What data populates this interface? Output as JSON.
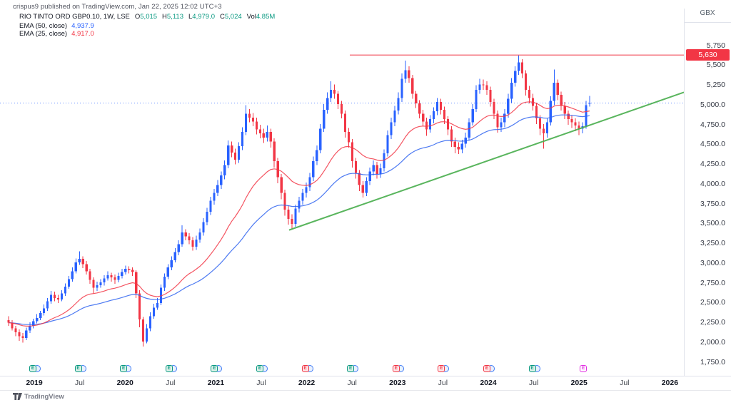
{
  "header": {
    "published_line": "crispus9 published on TradingView.com, Jan 22, 2025 12:02 UTC+3",
    "symbol": "RIO TINTO ORD GBP0.10, 1W, LSE",
    "ohlc": [
      {
        "label": "O",
        "value": "5,015"
      },
      {
        "label": "H",
        "value": "5,113"
      },
      {
        "label": "L",
        "value": "4,979.0"
      },
      {
        "label": "C",
        "value": "5,024"
      },
      {
        "label": "Vol",
        "value": "4.85M"
      }
    ],
    "value_color": "#089981",
    "indicators": [
      {
        "label": "EMA (50, close)",
        "value": "4,937.9",
        "color": "#2962ff"
      },
      {
        "label": "EMA (25, close)",
        "value": "4,917.0",
        "color": "#f23645"
      }
    ]
  },
  "price_axis": {
    "unit": "GBX",
    "labels": [
      {
        "text": "5,750",
        "value": 5750
      },
      {
        "text": "5,500",
        "value": 5500
      },
      {
        "text": "5,250",
        "value": 5250
      },
      {
        "text": "5,000.0",
        "value": 5000
      },
      {
        "text": "4,750.0",
        "value": 4750
      },
      {
        "text": "4,500.0",
        "value": 4500
      },
      {
        "text": "4,250.0",
        "value": 4250
      },
      {
        "text": "4,000.0",
        "value": 4000
      },
      {
        "text": "3,750.0",
        "value": 3750
      },
      {
        "text": "3,500.0",
        "value": 3500
      },
      {
        "text": "3,250.0",
        "value": 3250
      },
      {
        "text": "3,000.0",
        "value": 3000
      },
      {
        "text": "2,750.0",
        "value": 2750
      },
      {
        "text": "2,500.0",
        "value": 2500
      },
      {
        "text": "2,250.0",
        "value": 2250
      },
      {
        "text": "2,000.0",
        "value": 2000
      },
      {
        "text": "1,750.0",
        "value": 1750
      }
    ],
    "badge": {
      "text": "5,630",
      "value": 5630,
      "color": "#f23645"
    }
  },
  "time_axis": {
    "ticks": [
      {
        "label": "2019",
        "style": "year",
        "marker": "green",
        "dividend": true
      },
      {
        "label": "Jul",
        "style": "month",
        "marker": "green",
        "dividend": true
      },
      {
        "label": "2020",
        "style": "year",
        "marker": "green",
        "dividend": true
      },
      {
        "label": "Jul",
        "style": "month",
        "marker": "green",
        "dividend": true
      },
      {
        "label": "2021",
        "style": "year",
        "marker": "green",
        "dividend": true
      },
      {
        "label": "Jul",
        "style": "month",
        "marker": "green",
        "dividend": true
      },
      {
        "label": "2022",
        "style": "year",
        "marker": "red",
        "dividend": true
      },
      {
        "label": "Jul",
        "style": "month",
        "marker": "green",
        "dividend": true
      },
      {
        "label": "2023",
        "style": "year",
        "marker": "red",
        "dividend": true
      },
      {
        "label": "Jul",
        "style": "month",
        "marker": "red",
        "dividend": true
      },
      {
        "label": "2024",
        "style": "year",
        "marker": "red",
        "dividend": true
      },
      {
        "label": "Jul",
        "style": "month",
        "marker": "green",
        "dividend": true
      },
      {
        "label": "2025",
        "style": "year",
        "marker": "magenta",
        "dividend": false
      },
      {
        "label": "Jul",
        "style": "month",
        "marker": null,
        "dividend": false
      },
      {
        "label": "2026",
        "style": "year",
        "marker": null,
        "dividend": false
      }
    ],
    "marker_colors": {
      "green": {
        "border": "#089981",
        "bg": "#def1ea",
        "text": "#089981"
      },
      "red": {
        "border": "#f23645",
        "bg": "#fde7e9",
        "text": "#f23645"
      },
      "magenta": {
        "border": "#e22ee2",
        "bg": "#ffffff",
        "text": "#e22ee2"
      }
    }
  },
  "footer": {
    "brand": "TradingView"
  },
  "chart_data": {
    "type": "candlestick",
    "title": "RIO TINTO ORD GBP0.10",
    "interval": "1W",
    "exchange": "LSE",
    "currency": "GBX",
    "ylim": [
      1750,
      5750
    ],
    "x_range": [
      "Oct 2018",
      "Jan 2025"
    ],
    "grid": false,
    "up_color": "#2962ff",
    "down_color": "#f23645",
    "candles_ohlc": [
      [
        2280,
        2330,
        2210,
        2250
      ],
      [
        2250,
        2280,
        2150,
        2180
      ],
      [
        2180,
        2210,
        2080,
        2130
      ],
      [
        2130,
        2165,
        2020,
        2080
      ],
      [
        2080,
        2120,
        2000,
        2055
      ],
      [
        2055,
        2185,
        2030,
        2150
      ],
      [
        2150,
        2255,
        2120,
        2210
      ],
      [
        2210,
        2300,
        2180,
        2270
      ],
      [
        2270,
        2360,
        2240,
        2310
      ],
      [
        2310,
        2400,
        2280,
        2370
      ],
      [
        2370,
        2480,
        2340,
        2430
      ],
      [
        2430,
        2560,
        2400,
        2520
      ],
      [
        2520,
        2650,
        2490,
        2600
      ],
      [
        2600,
        2640,
        2520,
        2560
      ],
      [
        2560,
        2600,
        2500,
        2545
      ],
      [
        2545,
        2660,
        2520,
        2620
      ],
      [
        2620,
        2745,
        2590,
        2705
      ],
      [
        2705,
        2840,
        2680,
        2800
      ],
      [
        2800,
        2950,
        2770,
        2900
      ],
      [
        2900,
        3060,
        2870,
        3010
      ],
      [
        3010,
        3150,
        2980,
        3055
      ],
      [
        3055,
        3090,
        2940,
        2990
      ],
      [
        2990,
        3030,
        2860,
        2900
      ],
      [
        2900,
        2930,
        2740,
        2790
      ],
      [
        2790,
        2820,
        2620,
        2690
      ],
      [
        2690,
        2770,
        2650,
        2725
      ],
      [
        2725,
        2800,
        2690,
        2760
      ],
      [
        2760,
        2850,
        2720,
        2810
      ],
      [
        2810,
        2900,
        2780,
        2850
      ],
      [
        2850,
        2880,
        2770,
        2820
      ],
      [
        2820,
        2860,
        2740,
        2790
      ],
      [
        2790,
        2880,
        2760,
        2840
      ],
      [
        2840,
        2930,
        2810,
        2890
      ],
      [
        2890,
        2970,
        2860,
        2930
      ],
      [
        2930,
        2960,
        2870,
        2915
      ],
      [
        2915,
        2950,
        2840,
        2890
      ],
      [
        2890,
        2910,
        2560,
        2620
      ],
      [
        2620,
        2660,
        2190,
        2290
      ],
      [
        2290,
        2320,
        1950,
        2010
      ],
      [
        2010,
        2230,
        1990,
        2180
      ],
      [
        2180,
        2380,
        2140,
        2330
      ],
      [
        2330,
        2490,
        2300,
        2440
      ],
      [
        2440,
        2560,
        2410,
        2500
      ],
      [
        2500,
        2730,
        2470,
        2690
      ],
      [
        2690,
        2870,
        2650,
        2830
      ],
      [
        2830,
        2990,
        2800,
        2950
      ],
      [
        2950,
        3090,
        2910,
        3040
      ],
      [
        3040,
        3190,
        3010,
        3140
      ],
      [
        3140,
        3290,
        3100,
        3240
      ],
      [
        3240,
        3480,
        3210,
        3390
      ],
      [
        3390,
        3430,
        3290,
        3340
      ],
      [
        3340,
        3380,
        3240,
        3290
      ],
      [
        3290,
        3330,
        3160,
        3210
      ],
      [
        3210,
        3350,
        3170,
        3300
      ],
      [
        3300,
        3440,
        3260,
        3390
      ],
      [
        3390,
        3570,
        3350,
        3520
      ],
      [
        3520,
        3700,
        3480,
        3650
      ],
      [
        3650,
        3840,
        3610,
        3790
      ],
      [
        3790,
        3940,
        3740,
        3890
      ],
      [
        3890,
        4050,
        3850,
        3990
      ],
      [
        3990,
        4160,
        3940,
        4110
      ],
      [
        4110,
        4300,
        4060,
        4240
      ],
      [
        4240,
        4550,
        4200,
        4490
      ],
      [
        4490,
        4540,
        4340,
        4400
      ],
      [
        4400,
        4450,
        4250,
        4310
      ],
      [
        4310,
        4530,
        4270,
        4480
      ],
      [
        4480,
        4720,
        4430,
        4660
      ],
      [
        4660,
        5000,
        4620,
        4890
      ],
      [
        4890,
        4950,
        4780,
        4840
      ],
      [
        4840,
        4900,
        4730,
        4790
      ],
      [
        4790,
        4840,
        4630,
        4690
      ],
      [
        4690,
        4750,
        4580,
        4640
      ],
      [
        4640,
        4700,
        4520,
        4590
      ],
      [
        4590,
        4740,
        4540,
        4660
      ],
      [
        4660,
        4700,
        4460,
        4540
      ],
      [
        4540,
        4580,
        4210,
        4290
      ],
      [
        4290,
        4330,
        4010,
        4090
      ],
      [
        4090,
        4130,
        3810,
        3890
      ],
      [
        3890,
        3930,
        3600,
        3680
      ],
      [
        3680,
        3730,
        3490,
        3560
      ],
      [
        3560,
        3620,
        3440,
        3500
      ],
      [
        3500,
        3740,
        3460,
        3690
      ],
      [
        3690,
        3840,
        3640,
        3790
      ],
      [
        3790,
        3940,
        3740,
        3890
      ],
      [
        3890,
        4020,
        3830,
        3960
      ],
      [
        3960,
        4140,
        3910,
        4090
      ],
      [
        4090,
        4350,
        4040,
        4290
      ],
      [
        4290,
        4490,
        4240,
        4430
      ],
      [
        4430,
        4760,
        4390,
        4700
      ],
      [
        4700,
        5010,
        4660,
        4940
      ],
      [
        4940,
        5160,
        4890,
        5090
      ],
      [
        5090,
        5300,
        5040,
        5190
      ],
      [
        5190,
        5260,
        5080,
        5140
      ],
      [
        5140,
        5180,
        4950,
        5010
      ],
      [
        5010,
        5050,
        4830,
        4890
      ],
      [
        4890,
        4930,
        4590,
        4660
      ],
      [
        4660,
        4710,
        4460,
        4530
      ],
      [
        4530,
        4570,
        4210,
        4290
      ],
      [
        4290,
        4330,
        4070,
        4140
      ],
      [
        4140,
        4180,
        3910,
        3990
      ],
      [
        3990,
        4040,
        3830,
        3890
      ],
      [
        3890,
        4090,
        3850,
        4040
      ],
      [
        4040,
        4210,
        3990,
        4160
      ],
      [
        4160,
        4300,
        4110,
        4240
      ],
      [
        4240,
        4280,
        4070,
        4130
      ],
      [
        4130,
        4260,
        4080,
        4200
      ],
      [
        4200,
        4440,
        4160,
        4390
      ],
      [
        4390,
        4680,
        4350,
        4620
      ],
      [
        4620,
        4840,
        4570,
        4780
      ],
      [
        4780,
        4990,
        4730,
        4930
      ],
      [
        4930,
        5160,
        4880,
        5090
      ],
      [
        5090,
        5400,
        5040,
        5330
      ],
      [
        5330,
        5560,
        5280,
        5440
      ],
      [
        5440,
        5490,
        5280,
        5340
      ],
      [
        5340,
        5380,
        5080,
        5140
      ],
      [
        5140,
        5180,
        4960,
        5020
      ],
      [
        5020,
        5060,
        4830,
        4890
      ],
      [
        4890,
        4940,
        4730,
        4790
      ],
      [
        4790,
        4840,
        4610,
        4690
      ],
      [
        4690,
        4870,
        4650,
        4820
      ],
      [
        4820,
        4970,
        4770,
        4920
      ],
      [
        4920,
        5090,
        4870,
        5040
      ],
      [
        5040,
        5080,
        4880,
        4940
      ],
      [
        4940,
        4980,
        4760,
        4820
      ],
      [
        4820,
        4860,
        4620,
        4690
      ],
      [
        4690,
        4730,
        4470,
        4540
      ],
      [
        4540,
        4590,
        4390,
        4470
      ],
      [
        4470,
        4530,
        4380,
        4440
      ],
      [
        4440,
        4560,
        4390,
        4510
      ],
      [
        4510,
        4650,
        4460,
        4590
      ],
      [
        4590,
        4830,
        4550,
        4780
      ],
      [
        4780,
        5010,
        4740,
        4950
      ],
      [
        4950,
        5250,
        4910,
        5190
      ],
      [
        5190,
        5330,
        5140,
        5260
      ],
      [
        5260,
        5320,
        5190,
        5250
      ],
      [
        5250,
        5300,
        5130,
        5190
      ],
      [
        5190,
        5230,
        4980,
        5040
      ],
      [
        5040,
        5080,
        4820,
        4890
      ],
      [
        4890,
        4930,
        4650,
        4720
      ],
      [
        4720,
        4840,
        4660,
        4780
      ],
      [
        4780,
        4950,
        4720,
        4890
      ],
      [
        4890,
        5140,
        4840,
        5080
      ],
      [
        5080,
        5340,
        5030,
        5280
      ],
      [
        5280,
        5490,
        5230,
        5430
      ],
      [
        5430,
        5630,
        5380,
        5540
      ],
      [
        5540,
        5580,
        5340,
        5400
      ],
      [
        5400,
        5440,
        5120,
        5190
      ],
      [
        5190,
        5240,
        5020,
        5090
      ],
      [
        5090,
        5140,
        4930,
        4990
      ],
      [
        4990,
        5030,
        4760,
        4830
      ],
      [
        4830,
        4870,
        4620,
        4700
      ],
      [
        4700,
        4760,
        4450,
        4640
      ],
      [
        4640,
        4830,
        4590,
        4780
      ],
      [
        4780,
        5110,
        4740,
        5050
      ],
      [
        5050,
        5450,
        5000,
        5280
      ],
      [
        5280,
        5320,
        5060,
        5130
      ],
      [
        5130,
        5170,
        4930,
        4990
      ],
      [
        4990,
        5040,
        4820,
        4890
      ],
      [
        4890,
        4930,
        4750,
        4820
      ],
      [
        4820,
        4870,
        4710,
        4780
      ],
      [
        4780,
        4830,
        4670,
        4740
      ],
      [
        4740,
        4790,
        4620,
        4700
      ],
      [
        4700,
        4780,
        4640,
        4730
      ],
      [
        4730,
        5050,
        4700,
        5000
      ],
      [
        5015,
        5113,
        4979,
        5024
      ]
    ],
    "overlays": {
      "ema50": {
        "type": "ema",
        "period": 50,
        "color": "#2e63f0",
        "last_value": 4937.9
      },
      "ema25": {
        "type": "ema",
        "period": 25,
        "color": "#f23645",
        "last_value": 4917.0
      },
      "resistance_line": {
        "type": "horizontal-line",
        "price": 5630,
        "color": "#f23645"
      },
      "support_trendline": {
        "type": "trendline",
        "from_price": 3420,
        "to_price": 5160,
        "color": "#4caf50"
      },
      "current_price_line": {
        "type": "dotted-horizontal-line",
        "price": 5024,
        "color": "#2962ff"
      }
    },
    "legend_position": "top-left"
  }
}
